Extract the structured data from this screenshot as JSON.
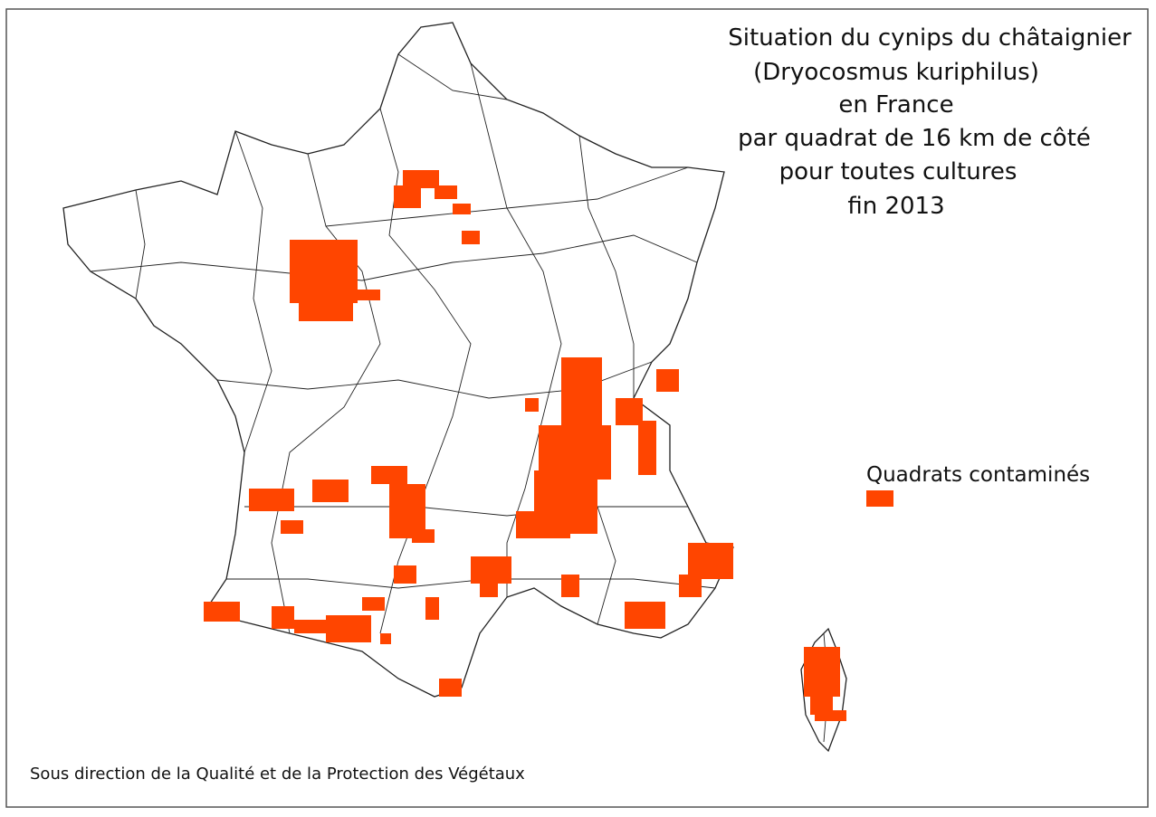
{
  "title_lines": [
    "Situation du cynips du châtaignier",
    "(Dryocosmus kuriphilus)",
    "en France",
    "par quadrat de 16 km de côté",
    "pour toutes cultures",
    "fin 2013"
  ],
  "legend": {
    "label": "Quadrats contaminés",
    "color": "#ff4500"
  },
  "footer": "Sous direction de la Qualité et de la Protection des Végétaux"
}
